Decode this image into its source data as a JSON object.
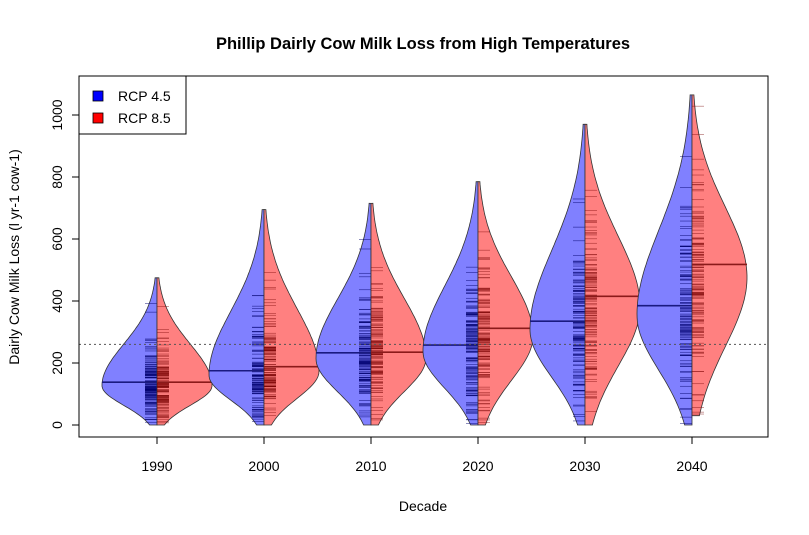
{
  "chart_data": {
    "type": "violin",
    "title": "Phillip Dairly Cow Milk Loss from High Temperatures",
    "xlabel": "Decade",
    "ylabel": "Dairly Cow Milk Loss (l yr-1 cow-1)",
    "ylim": [
      0,
      1100
    ],
    "yticks": [
      0,
      200,
      400,
      600,
      800,
      1000
    ],
    "categories": [
      "1990",
      "2000",
      "2010",
      "2020",
      "2030",
      "2040"
    ],
    "reference_line": 260,
    "legend": {
      "position": "top-left"
    },
    "series": [
      {
        "name": "RCP 4.5",
        "color": "#0000ff",
        "fill": "#8080ff",
        "side": "left",
        "mean": [
          138,
          175,
          233,
          258,
          335,
          385
        ],
        "min": [
          0,
          0,
          0,
          0,
          0,
          0
        ],
        "max": [
          475,
          695,
          715,
          785,
          970,
          1065
        ]
      },
      {
        "name": "RCP 8.5",
        "color": "#ff0000",
        "fill": "#ff8080",
        "side": "right",
        "mean": [
          138,
          188,
          235,
          312,
          415,
          518
        ],
        "min": [
          0,
          0,
          0,
          0,
          0,
          30
        ],
        "max": [
          475,
          695,
          715,
          785,
          970,
          1065
        ]
      }
    ]
  }
}
